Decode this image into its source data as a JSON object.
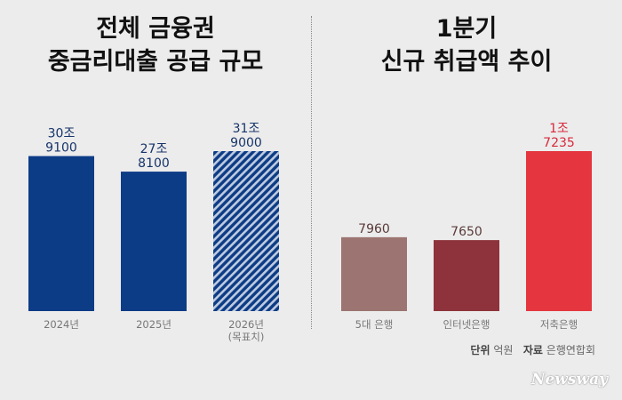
{
  "colors": {
    "navy": "#0d3c86",
    "brown": "#9c7471",
    "maroon": "#8e333b",
    "red": "#e5363f",
    "label_navy": "#16346a",
    "label_brown": "#5a3a3a",
    "label_red": "#d8283a"
  },
  "chart_data": [
    {
      "type": "bar",
      "title_lines": [
        "전체 금융권",
        "중금리대출 공급 규모"
      ],
      "categories": [
        [
          "2024년"
        ],
        [
          "2025년"
        ],
        [
          "2026년",
          "(목표치)"
        ]
      ],
      "values": [
        309100,
        278100,
        319000
      ],
      "value_labels": [
        [
          "30조",
          "9100"
        ],
        [
          "27조",
          "8100"
        ],
        [
          "31조",
          "9000"
        ]
      ],
      "unit": "억원",
      "bar_styles": [
        "solid",
        "solid",
        "hatched"
      ],
      "bar_colors": [
        "navy",
        "navy",
        "navy"
      ],
      "label_colors": [
        "label_navy",
        "label_navy",
        "label_navy"
      ]
    },
    {
      "type": "bar",
      "title_lines": [
        "1분기",
        "신규 취급액 추이"
      ],
      "categories": [
        [
          "5대 은행"
        ],
        [
          "인터넷은행"
        ],
        [
          "저축은행"
        ]
      ],
      "values": [
        7960,
        7650,
        17235
      ],
      "value_labels": [
        [
          "7960"
        ],
        [
          "7650"
        ],
        [
          "1조",
          "7235"
        ]
      ],
      "unit": "억원",
      "bar_styles": [
        "solid",
        "solid",
        "solid"
      ],
      "bar_colors": [
        "brown",
        "maroon",
        "red"
      ],
      "label_colors": [
        "label_brown",
        "label_brown",
        "label_red"
      ]
    }
  ],
  "source_note": {
    "unit_key": "단위",
    "unit_value": "억원",
    "source_key": "자료",
    "source_value": "은행연합회"
  },
  "brand": "Newsway"
}
